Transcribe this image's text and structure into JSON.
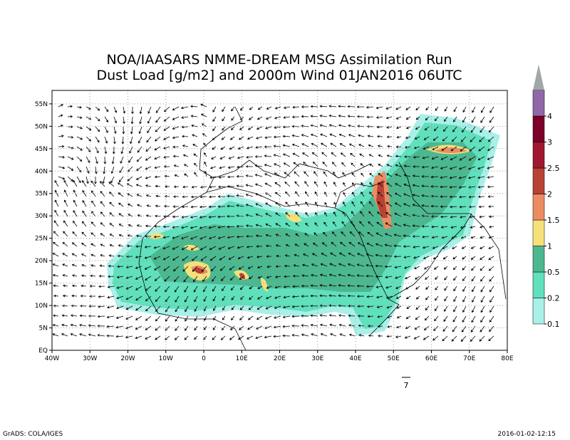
{
  "title": [
    "NOA/IAASARS NMME-DREAM MSG Assimilation Run",
    "Dust Load [g/m2] and 2000m Wind 01JAN2016 06UTC"
  ],
  "map": {
    "xlim": [
      -40,
      80
    ],
    "xticks": [
      {
        "value": -40,
        "label": "40W"
      },
      {
        "value": -30,
        "label": "30W"
      },
      {
        "value": -20,
        "label": "20W"
      },
      {
        "value": -10,
        "label": "10W"
      },
      0,
      {
        "value": 10,
        "label": "10E"
      },
      {
        "value": 20,
        "label": "20E"
      },
      {
        "value": 30,
        "label": "30E"
      },
      {
        "value": 40,
        "label": "40E"
      },
      {
        "value": 50,
        "label": "50E"
      },
      {
        "value": 60,
        "label": "60E"
      },
      {
        "value": 70,
        "label": "70E"
      },
      {
        "value": 80,
        "label": "80E"
      }
    ],
    "ylim": [
      0,
      58
    ],
    "yticks": [
      {
        "value": 0,
        "label": "EQ"
      },
      {
        "value": 5,
        "label": "5N"
      },
      {
        "value": 10,
        "label": "10N"
      },
      {
        "value": 15,
        "label": "15N"
      },
      {
        "value": 20,
        "label": "20N"
      },
      {
        "value": 25,
        "label": "25N"
      },
      {
        "value": 30,
        "label": "30N"
      },
      {
        "value": 35,
        "label": "35N"
      },
      {
        "value": 40,
        "label": "40N"
      },
      {
        "value": 45,
        "label": "45N"
      },
      {
        "value": 50,
        "label": "50N"
      },
      {
        "value": 55,
        "label": "55N"
      }
    ],
    "grid": true
  },
  "colorbar": {
    "labels": [
      "0.1",
      "0.2",
      "0.5",
      "1",
      "1.5",
      "2",
      "2.5",
      "3",
      "4"
    ],
    "colors": [
      "#a8f0e8",
      "#60e0bc",
      "#4cb890",
      "#f5e07a",
      "#ec8c62",
      "#b84234",
      "#a01830",
      "#7c0028",
      "#9068a8",
      "#a0a8a8"
    ]
  },
  "wind_reference": "7",
  "footer": {
    "left": "GrADS: COLA/IGES",
    "right": "2016-01-02-12:15"
  }
}
